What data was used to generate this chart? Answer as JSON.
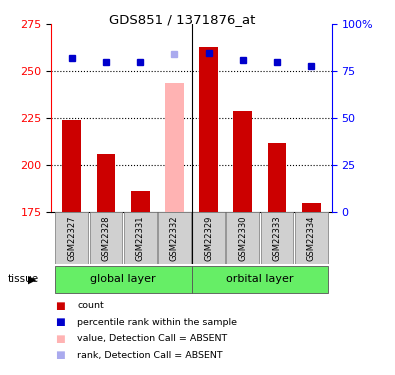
{
  "title": "GDS851 / 1371876_at",
  "samples": [
    "GSM22327",
    "GSM22328",
    "GSM22331",
    "GSM22332",
    "GSM22329",
    "GSM22330",
    "GSM22333",
    "GSM22334"
  ],
  "group_labels": [
    "global layer",
    "orbital layer"
  ],
  "bar_values": [
    224,
    206,
    186,
    null,
    263,
    229,
    212,
    180
  ],
  "bar_absent_values": [
    null,
    null,
    null,
    244,
    null,
    null,
    null,
    null
  ],
  "rank_values": [
    82,
    80,
    80,
    null,
    85,
    81,
    80,
    78
  ],
  "rank_absent_values": [
    null,
    null,
    null,
    84,
    null,
    null,
    null,
    null
  ],
  "bar_color": "#cc0000",
  "bar_absent_color": "#ffb3b3",
  "rank_color": "#0000cc",
  "rank_absent_color": "#aaaaee",
  "ymin": 175,
  "ymax": 275,
  "yticks": [
    175,
    200,
    225,
    250,
    275
  ],
  "right_yticks": [
    0,
    25,
    50,
    75,
    100
  ],
  "right_ytick_labels": [
    "0",
    "25",
    "50",
    "75",
    "100%"
  ],
  "grid_lines": [
    200,
    225,
    250
  ],
  "bar_width": 0.55,
  "separator_after": 3,
  "legend_items": [
    {
      "label": "count",
      "color": "#cc0000"
    },
    {
      "label": "percentile rank within the sample",
      "color": "#0000cc"
    },
    {
      "label": "value, Detection Call = ABSENT",
      "color": "#ffb3b3"
    },
    {
      "label": "rank, Detection Call = ABSENT",
      "color": "#aaaaee"
    }
  ]
}
